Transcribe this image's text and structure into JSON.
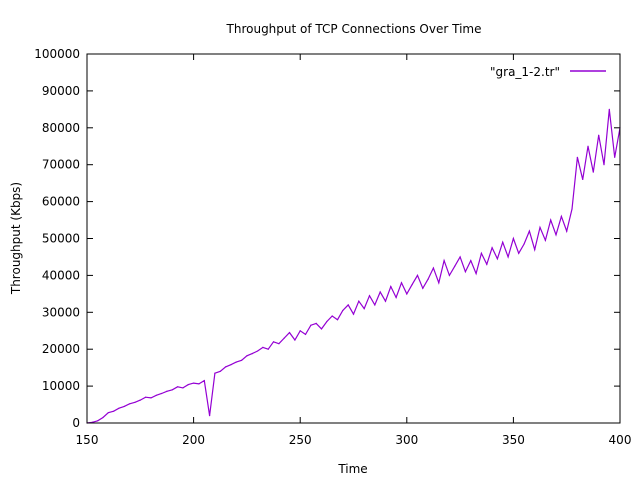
{
  "chart_data": {
    "type": "line",
    "title": "Throughput of TCP Connections Over Time",
    "xlabel": "Time",
    "ylabel": "Throughput (Kbps)",
    "xlim": [
      150,
      400
    ],
    "ylim": [
      0,
      100000
    ],
    "xticks": [
      150,
      200,
      250,
      300,
      350,
      400
    ],
    "yticks": [
      0,
      10000,
      20000,
      30000,
      40000,
      50000,
      60000,
      70000,
      80000,
      90000,
      100000
    ],
    "grid": false,
    "legend_placement": "top-right",
    "series": [
      {
        "name": "\"gra_1-2.tr\"",
        "color": "#9400d3",
        "x_start": 150,
        "x_step": 2.5,
        "values": [
          0,
          200,
          600,
          1500,
          2800,
          3200,
          4000,
          4500,
          5200,
          5600,
          6200,
          7000,
          6800,
          7500,
          8000,
          8600,
          9000,
          9800,
          9500,
          10400,
          10800,
          10600,
          11500,
          2000,
          13500,
          14000,
          15200,
          15800,
          16500,
          17000,
          18200,
          18800,
          19500,
          20500,
          20000,
          22000,
          21500,
          23000,
          24500,
          22500,
          25000,
          24000,
          26500,
          27000,
          25500,
          27500,
          29000,
          28000,
          30500,
          32000,
          29500,
          33000,
          31000,
          34500,
          32000,
          35500,
          33000,
          37000,
          34000,
          38000,
          35000,
          37500,
          40000,
          36500,
          39000,
          42000,
          38000,
          44000,
          40000,
          42500,
          45000,
          41000,
          44000,
          40500,
          46000,
          43000,
          47500,
          44500,
          49000,
          45000,
          50000,
          46000,
          48500,
          52000,
          47000,
          53000,
          49500,
          55000,
          51000,
          56000,
          52000,
          58000,
          72000,
          66000,
          75000,
          68000,
          78000,
          70000,
          85000,
          72000,
          80000
        ]
      }
    ]
  }
}
